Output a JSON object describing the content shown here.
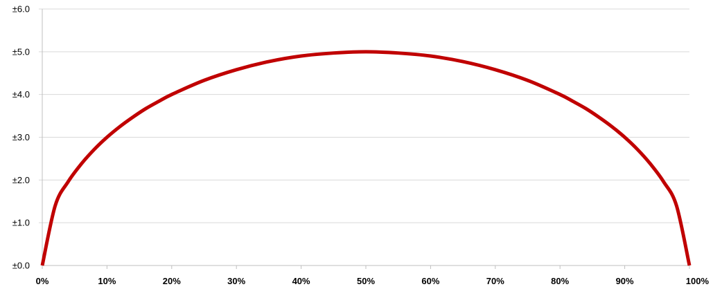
{
  "chart_data": {
    "type": "line",
    "ytick_labels": [
      "±0.0",
      "±1.0",
      "±2.0",
      "±3.0",
      "±4.0",
      "±5.0",
      "±6.0"
    ],
    "xtick_labels": [
      "0%",
      "10%",
      "20%",
      "30%",
      "40%",
      "50%",
      "60%",
      "70%",
      "80%",
      "90%",
      "100%"
    ],
    "xlim": [
      0,
      100
    ],
    "ylim": [
      0,
      6
    ],
    "grid": true,
    "line_color": "#c00000",
    "series": [
      {
        "x": [
          0,
          2,
          4,
          6,
          8,
          10,
          12,
          14,
          16,
          18,
          20,
          25,
          30,
          35,
          40,
          45,
          50,
          55,
          60,
          65,
          70,
          75,
          80,
          82,
          84,
          86,
          88,
          90,
          92,
          94,
          96,
          98,
          100
        ],
        "values": [
          0,
          1.4,
          1.96,
          2.37,
          2.71,
          3.0,
          3.25,
          3.47,
          3.67,
          3.84,
          4.0,
          4.33,
          4.58,
          4.77,
          4.9,
          4.97,
          5.0,
          4.97,
          4.9,
          4.77,
          4.58,
          4.33,
          4.0,
          3.84,
          3.67,
          3.47,
          3.25,
          3.0,
          2.71,
          2.37,
          1.96,
          1.4,
          0
        ]
      }
    ]
  }
}
